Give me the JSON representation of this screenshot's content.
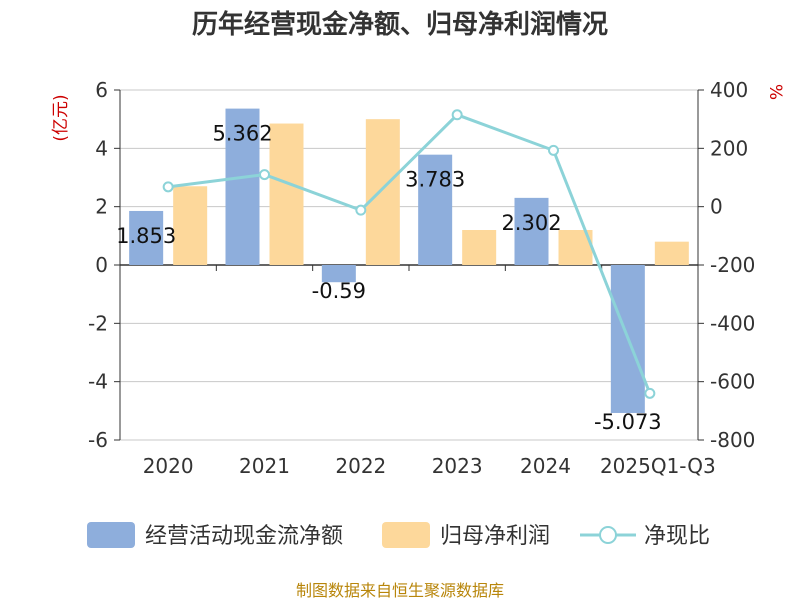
{
  "chart_data": {
    "type": "bar",
    "title": "历年经营现金净额、归母净利润情况",
    "categories": [
      "2020",
      "2021",
      "2022",
      "2023",
      "2024",
      "2025Q1-Q3"
    ],
    "left_axis": {
      "unit": "(亿元)",
      "min": -6,
      "max": 6,
      "ticks": [
        6,
        4,
        2,
        0,
        -2,
        -4,
        -6
      ]
    },
    "right_axis": {
      "unit": "%",
      "min": -800,
      "max": 400,
      "ticks": [
        400,
        200,
        0,
        -200,
        -400,
        -600,
        -800
      ]
    },
    "series": [
      {
        "name": "经营活动现金流净额",
        "type": "bar",
        "axis": "left",
        "color": "#8eaedc",
        "values": [
          1.853,
          5.362,
          -0.59,
          3.783,
          2.302,
          -5.073
        ],
        "labels": [
          "1.853",
          "5.362",
          "-0.59",
          "3.783",
          "2.302",
          "-5.073"
        ]
      },
      {
        "name": "归母净利润",
        "type": "bar",
        "axis": "left",
        "color": "#fdd89b",
        "values": [
          2.7,
          4.85,
          5.0,
          1.2,
          1.2,
          0.8
        ]
      },
      {
        "name": "净现比",
        "type": "line",
        "axis": "right",
        "color": "#8cd3d8",
        "values": [
          68,
          110,
          -12,
          315,
          193,
          -640
        ]
      }
    ],
    "legend_position": "bottom",
    "grid": true
  },
  "source": "制图数据来自恒生聚源数据库"
}
